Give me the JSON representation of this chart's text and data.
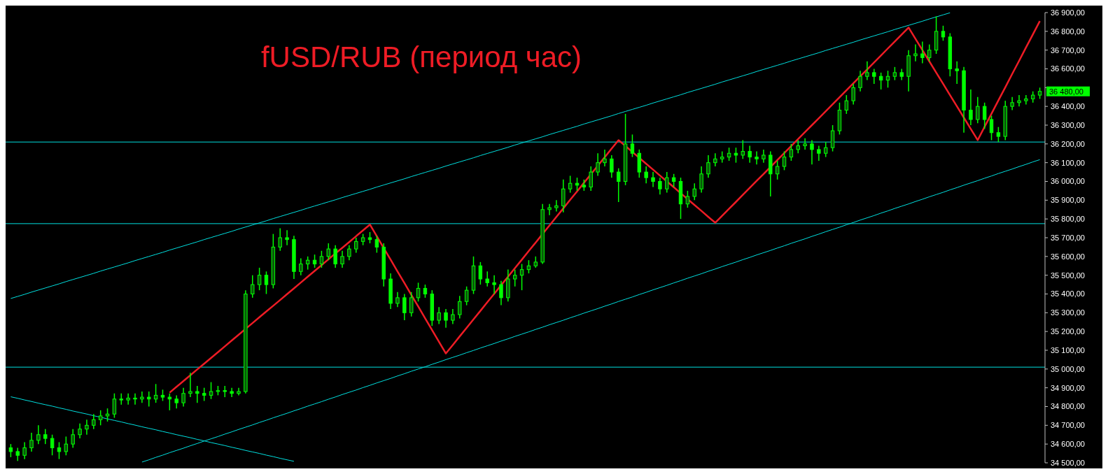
{
  "chart_data": {
    "type": "candlestick",
    "title": "fUSD/RUB (период час)",
    "color": "#00ff00",
    "categories": [
      null,
      null,
      null,
      null,
      null,
      null,
      null,
      null,
      null,
      null,
      null,
      null,
      null,
      null,
      null,
      null,
      null,
      null,
      null,
      null,
      null,
      null,
      null,
      null,
      null,
      null,
      null,
      null,
      null,
      null,
      null,
      null,
      null,
      null,
      null,
      null,
      null,
      null,
      null,
      null,
      null,
      null,
      null,
      null,
      null,
      null,
      null,
      null,
      null,
      null,
      null,
      null,
      null,
      null,
      null,
      null,
      null,
      null,
      null,
      null,
      null,
      null,
      null,
      null,
      null,
      null,
      null,
      null,
      null,
      null,
      null,
      null,
      null,
      null,
      null,
      null,
      null,
      null,
      null,
      null,
      null,
      null,
      null,
      null,
      null,
      null,
      null,
      null,
      null,
      null,
      null,
      null,
      null,
      null,
      null,
      null,
      null,
      null,
      null,
      null,
      null,
      null,
      null,
      null,
      null,
      null,
      null,
      null,
      null,
      null,
      null,
      null,
      null,
      null,
      null,
      null,
      null,
      null,
      null,
      null,
      null,
      null,
      null,
      null,
      null,
      null,
      null,
      null,
      null,
      null,
      null,
      null,
      null,
      null,
      null,
      null,
      null,
      null,
      null,
      null,
      null,
      null,
      null,
      null,
      null,
      null,
      null,
      null,
      null,
      null
    ],
    "ohlc": [
      [
        34580,
        34600,
        34530,
        34560
      ],
      [
        34560,
        34580,
        34510,
        34540
      ],
      [
        34540,
        34610,
        34520,
        34580
      ],
      [
        34580,
        34660,
        34560,
        34620
      ],
      [
        34620,
        34700,
        34600,
        34650
      ],
      [
        34650,
        34680,
        34600,
        34630
      ],
      [
        34630,
        34650,
        34540,
        34580
      ],
      [
        34580,
        34610,
        34520,
        34560
      ],
      [
        34560,
        34640,
        34540,
        34600
      ],
      [
        34600,
        34680,
        34580,
        34650
      ],
      [
        34650,
        34710,
        34630,
        34680
      ],
      [
        34680,
        34730,
        34650,
        34700
      ],
      [
        34700,
        34760,
        34680,
        34730
      ],
      [
        34730,
        34780,
        34700,
        34750
      ],
      [
        34750,
        34790,
        34720,
        34760
      ],
      [
        34760,
        34870,
        34740,
        34840
      ],
      [
        34840,
        34870,
        34810,
        34835
      ],
      [
        34835,
        34870,
        34810,
        34845
      ],
      [
        34845,
        34870,
        34810,
        34840
      ],
      [
        34840,
        34880,
        34820,
        34850
      ],
      [
        34850,
        34880,
        34800,
        34840
      ],
      [
        34840,
        34920,
        34820,
        34860
      ],
      [
        34860,
        34890,
        34830,
        34850
      ],
      [
        34850,
        34870,
        34780,
        34840
      ],
      [
        34840,
        34860,
        34790,
        34820
      ],
      [
        34820,
        34900,
        34800,
        34870
      ],
      [
        34870,
        34980,
        34850,
        34880
      ],
      [
        34880,
        34910,
        34820,
        34870
      ],
      [
        34870,
        34900,
        34830,
        34860
      ],
      [
        34860,
        34930,
        34840,
        34880
      ],
      [
        34880,
        34910,
        34860,
        34885
      ],
      [
        34885,
        34910,
        34850,
        34880
      ],
      [
        34880,
        34900,
        34850,
        34870
      ],
      [
        34870,
        34900,
        34860,
        34880
      ],
      [
        34880,
        35420,
        34870,
        35400
      ],
      [
        35400,
        35500,
        35380,
        35450
      ],
      [
        35450,
        35540,
        35420,
        35500
      ],
      [
        35500,
        35520,
        35400,
        35450
      ],
      [
        35450,
        35720,
        35430,
        35650
      ],
      [
        35650,
        35750,
        35630,
        35700
      ],
      [
        35700,
        35740,
        35660,
        35690
      ],
      [
        35690,
        35710,
        35480,
        35520
      ],
      [
        35520,
        35590,
        35500,
        35560
      ],
      [
        35560,
        35600,
        35530,
        35580
      ],
      [
        35580,
        35610,
        35540,
        35560
      ],
      [
        35560,
        35630,
        35540,
        35600
      ],
      [
        35600,
        35670,
        35580,
        35640
      ],
      [
        35640,
        35660,
        35540,
        35560
      ],
      [
        35560,
        35630,
        35540,
        35600
      ],
      [
        35600,
        35660,
        35580,
        35640
      ],
      [
        35640,
        35700,
        35620,
        35680
      ],
      [
        35680,
        35720,
        35660,
        35700
      ],
      [
        35700,
        35730,
        35670,
        35690
      ],
      [
        35690,
        35710,
        35620,
        35650
      ],
      [
        35650,
        35670,
        35440,
        35480
      ],
      [
        35480,
        35510,
        35320,
        35350
      ],
      [
        35350,
        35410,
        35330,
        35380
      ],
      [
        35380,
        35400,
        35260,
        35300
      ],
      [
        35300,
        35410,
        35280,
        35380
      ],
      [
        35380,
        35460,
        35360,
        35430
      ],
      [
        35430,
        35450,
        35380,
        35400
      ],
      [
        35400,
        35420,
        35230,
        35260
      ],
      [
        35260,
        35330,
        35240,
        35300
      ],
      [
        35300,
        35320,
        35220,
        35260
      ],
      [
        35260,
        35320,
        35240,
        35290
      ],
      [
        35290,
        35390,
        35270,
        35360
      ],
      [
        35360,
        35440,
        35340,
        35420
      ],
      [
        35420,
        35600,
        35400,
        35550
      ],
      [
        35550,
        35570,
        35450,
        35480
      ],
      [
        35480,
        35520,
        35440,
        35460
      ],
      [
        35460,
        35500,
        35400,
        35450
      ],
      [
        35450,
        35470,
        35340,
        35380
      ],
      [
        35380,
        35530,
        35360,
        35480
      ],
      [
        35480,
        35530,
        35440,
        35500
      ],
      [
        35500,
        35560,
        35420,
        35530
      ],
      [
        35530,
        35580,
        35510,
        35550
      ],
      [
        35550,
        35600,
        35540,
        35570
      ],
      [
        35570,
        35880,
        35560,
        35850
      ],
      [
        35850,
        35880,
        35820,
        35860
      ],
      [
        35860,
        35900,
        35840,
        35870
      ],
      [
        35870,
        36010,
        35835,
        35960
      ],
      [
        35960,
        36030,
        35940,
        35990
      ],
      [
        35990,
        36020,
        35950,
        35980
      ],
      [
        35980,
        36010,
        35950,
        35970
      ],
      [
        35970,
        36080,
        35950,
        36050
      ],
      [
        36050,
        36150,
        36030,
        36100
      ],
      [
        36100,
        36170,
        36080,
        36120
      ],
      [
        36120,
        36140,
        36020,
        36050
      ],
      [
        36050,
        36070,
        35890,
        36000
      ],
      [
        36000,
        36360,
        35980,
        36200
      ],
      [
        36200,
        36250,
        36130,
        36150
      ],
      [
        36150,
        36170,
        36020,
        36050
      ],
      [
        36050,
        36080,
        35990,
        36020
      ],
      [
        36020,
        36050,
        35970,
        36000
      ],
      [
        36000,
        36020,
        35930,
        35960
      ],
      [
        35960,
        36050,
        35940,
        36020
      ],
      [
        36020,
        36040,
        35970,
        36000
      ],
      [
        36000,
        36020,
        35800,
        35880
      ],
      [
        35880,
        35950,
        35860,
        35920
      ],
      [
        35920,
        35990,
        35900,
        35960
      ],
      [
        35960,
        36080,
        35940,
        36040
      ],
      [
        36040,
        36140,
        36020,
        36100
      ],
      [
        36100,
        36150,
        36080,
        36120
      ],
      [
        36120,
        36160,
        36100,
        36130
      ],
      [
        36130,
        36180,
        36110,
        36150
      ],
      [
        36150,
        36180,
        36100,
        36140
      ],
      [
        36140,
        36220,
        36120,
        36160
      ],
      [
        36160,
        36190,
        36100,
        36130
      ],
      [
        36130,
        36160,
        36090,
        36120
      ],
      [
        36120,
        36170,
        36100,
        36140
      ],
      [
        36140,
        36160,
        35920,
        36040
      ],
      [
        36040,
        36110,
        36010,
        36080
      ],
      [
        36080,
        36160,
        36060,
        36130
      ],
      [
        36130,
        36200,
        36110,
        36170
      ],
      [
        36170,
        36220,
        36150,
        36190
      ],
      [
        36190,
        36230,
        36170,
        36200
      ],
      [
        36200,
        36220,
        36090,
        36170
      ],
      [
        36170,
        36190,
        36110,
        36150
      ],
      [
        36150,
        36210,
        36130,
        36180
      ],
      [
        36180,
        36300,
        36160,
        36270
      ],
      [
        36270,
        36420,
        36250,
        36380
      ],
      [
        36380,
        36460,
        36360,
        36430
      ],
      [
        36430,
        36520,
        36410,
        36500
      ],
      [
        36500,
        36590,
        36480,
        36560
      ],
      [
        36560,
        36640,
        36540,
        36580
      ],
      [
        36580,
        36600,
        36520,
        36560
      ],
      [
        36560,
        36580,
        36490,
        36540
      ],
      [
        36540,
        36590,
        36500,
        36560
      ],
      [
        36560,
        36610,
        36540,
        36580
      ],
      [
        36580,
        36600,
        36540,
        36560
      ],
      [
        36560,
        36700,
        36480,
        36670
      ],
      [
        36670,
        36730,
        36640,
        36680
      ],
      [
        36680,
        36745,
        36630,
        36660
      ],
      [
        36660,
        36730,
        36640,
        36700
      ],
      [
        36700,
        36880,
        36680,
        36800
      ],
      [
        36800,
        36830,
        36750,
        36770
      ],
      [
        36770,
        36790,
        36560,
        36600
      ],
      [
        36600,
        36640,
        36520,
        36590
      ],
      [
        36590,
        36610,
        36260,
        36380
      ],
      [
        36380,
        36490,
        36300,
        36330
      ],
      [
        36330,
        36450,
        36310,
        36400
      ],
      [
        36400,
        36420,
        36280,
        36330
      ],
      [
        36330,
        36350,
        36220,
        36260
      ],
      [
        36260,
        36290,
        36210,
        36240
      ],
      [
        36240,
        36430,
        36220,
        36400
      ],
      [
        36400,
        36450,
        36380,
        36420
      ],
      [
        36420,
        36460,
        36400,
        36430
      ],
      [
        36430,
        36460,
        36410,
        36440
      ],
      [
        36440,
        36480,
        36420,
        36460
      ],
      [
        36460,
        36500,
        36440,
        36480
      ]
    ],
    "series": [
      {
        "type": "line",
        "color": "#00e0e0",
        "values": [
          35376,
          35387,
          35398,
          35410,
          35421,
          35432,
          35443,
          35454,
          35466,
          35477,
          35488,
          35499,
          35510,
          35522,
          35533,
          35544,
          35555,
          35566,
          35578,
          35589,
          35600,
          35611,
          35622,
          35634,
          35645,
          35656,
          35667,
          35678,
          35690,
          35701,
          35712,
          35723,
          35734,
          35746,
          35757,
          35768,
          35779,
          35790,
          35802,
          35813,
          35824,
          35835,
          35846,
          35858,
          35869,
          35880,
          35891,
          35902,
          35914,
          35925,
          35936,
          35947,
          35958,
          35970,
          35981,
          35992,
          36003,
          36014,
          36026,
          36037,
          36048,
          36059,
          36070,
          36082,
          36093,
          36104,
          36115,
          36126,
          36138,
          36149,
          36160,
          36171,
          36182,
          36194,
          36205,
          36216,
          36227,
          36238,
          36250,
          36261,
          36272,
          36283,
          36294,
          36306,
          36317,
          36328,
          36339,
          36350,
          36362,
          36373,
          36384,
          36395,
          36406,
          36418,
          36429,
          36440,
          36451,
          36462,
          36474,
          36485,
          36496,
          36507,
          36518,
          36530,
          36541,
          36552,
          36563,
          36574,
          36586,
          36597,
          36608,
          36619,
          36630,
          36642,
          36653,
          36664,
          36675,
          36686,
          36698,
          36709,
          36720,
          36731,
          36742,
          36754,
          36765,
          36776,
          36787,
          36798,
          36810,
          36821,
          36832,
          36843,
          36854,
          36866,
          36877,
          36888,
          36899,
          null,
          null,
          null,
          null,
          null,
          null,
          null,
          null,
          null,
          null,
          null,
          null,
          null
        ]
      },
      {
        "type": "line",
        "color": "#00e0e0",
        "values": [
          null,
          null,
          null,
          null,
          null,
          null,
          null,
          null,
          null,
          null,
          null,
          null,
          null,
          null,
          null,
          null,
          null,
          null,
          null,
          34504,
          34516,
          34529,
          34541,
          34554,
          34566,
          34578,
          34591,
          34603,
          34616,
          34628,
          34640,
          34653,
          34665,
          34678,
          34690,
          34702,
          34715,
          34727,
          34740,
          34752,
          34764,
          34777,
          34789,
          34802,
          34814,
          34826,
          34839,
          34851,
          34864,
          34876,
          34888,
          34901,
          34913,
          34926,
          34938,
          34950,
          34963,
          34975,
          34988,
          35000,
          35012,
          35025,
          35037,
          35050,
          35062,
          35074,
          35087,
          35099,
          35112,
          35124,
          35136,
          35149,
          35161,
          35174,
          35186,
          35198,
          35211,
          35223,
          35236,
          35248,
          35260,
          35273,
          35285,
          35298,
          35310,
          35322,
          35335,
          35347,
          35360,
          35372,
          35384,
          35397,
          35409,
          35422,
          35434,
          35446,
          35459,
          35471,
          35484,
          35496,
          35508,
          35521,
          35533,
          35546,
          35558,
          35570,
          35583,
          35595,
          35608,
          35620,
          35632,
          35645,
          35657,
          35670,
          35682,
          35694,
          35707,
          35719,
          35732,
          35744,
          35756,
          35769,
          35781,
          35794,
          35806,
          35818,
          35831,
          35843,
          35856,
          35868,
          35880,
          35893,
          35905,
          35918,
          35930,
          35942,
          35955,
          35967,
          35980,
          35992,
          36004,
          36017,
          36029,
          36042,
          36054,
          36066,
          36079,
          36091,
          36104,
          36116
        ]
      },
      {
        "type": "line",
        "color": "#00e0e0",
        "values": [
          34852,
          34844,
          34835,
          34827,
          34818,
          34810,
          34802,
          34793,
          34785,
          34776,
          34768,
          34760,
          34751,
          34743,
          34734,
          34726,
          34718,
          34709,
          34701,
          34692,
          34684,
          34676,
          34667,
          34659,
          34650,
          34642,
          34634,
          34625,
          34617,
          34608,
          34600,
          34592,
          34583,
          34575,
          34566,
          34558,
          34550,
          34541,
          34533,
          34524,
          34516,
          34508,
          null,
          null,
          null,
          null,
          null,
          null,
          null,
          null,
          null,
          null,
          null,
          null,
          null,
          null,
          null,
          null,
          null,
          null,
          null,
          null,
          null,
          null,
          null,
          null,
          null,
          null,
          null,
          null,
          null,
          null,
          null,
          null,
          null,
          null,
          null,
          null,
          null,
          null,
          null,
          null,
          null,
          null,
          null,
          null,
          null,
          null,
          null,
          null,
          null,
          null,
          null,
          null,
          null,
          null,
          null,
          null,
          null,
          null,
          null,
          null,
          null,
          null,
          null,
          null,
          null,
          null,
          null,
          null,
          null,
          null,
          null,
          null,
          null,
          null,
          null,
          null,
          null,
          null,
          null,
          null,
          null,
          null,
          null,
          null,
          null,
          null,
          null,
          null,
          null,
          null,
          null,
          null,
          null,
          null,
          null,
          null,
          null,
          null,
          null,
          null,
          null,
          null,
          null,
          null,
          null,
          null,
          null,
          null
        ]
      },
      {
        "type": "line",
        "color": "#ee1c25",
        "values": [
          null,
          null,
          null,
          null,
          null,
          null,
          null,
          null,
          null,
          null,
          null,
          null,
          null,
          null,
          null,
          null,
          null,
          null,
          null,
          null,
          null,
          null,
          null,
          34874,
          34905,
          34936,
          34967,
          34998,
          35028,
          35059,
          35090,
          35121,
          35152,
          35183,
          35214,
          35245,
          35276,
          35307,
          35337,
          35368,
          35399,
          35430,
          35461,
          35492,
          35523,
          35554,
          35585,
          35616,
          35646,
          35677,
          35708,
          35739,
          35770,
          35708,
          35645,
          35583,
          35520,
          35458,
          35395,
          35333,
          35270,
          35208,
          35145,
          35083,
          35128,
          35174,
          35219,
          35265,
          35310,
          35356,
          35401,
          35447,
          35492,
          35538,
          35583,
          35629,
          35674,
          35720,
          35765,
          35811,
          35856,
          35902,
          35947,
          35993,
          36038,
          36084,
          36129,
          36175,
          36220,
          36189,
          36157,
          36126,
          36094,
          36063,
          36031,
          36000,
          35969,
          35937,
          35906,
          35874,
          35843,
          35811,
          35780,
          35817,
          35854,
          35891,
          35929,
          35966,
          36003,
          36040,
          36077,
          36114,
          36151,
          36189,
          36226,
          36263,
          36300,
          36337,
          36374,
          36411,
          36449,
          36486,
          36523,
          36560,
          36597,
          36634,
          36671,
          36709,
          36746,
          36783,
          36820,
          36760,
          36700,
          36640,
          36580,
          36520,
          36460,
          36400,
          36340,
          36280,
          36220,
          36291,
          36361,
          36432,
          36502,
          36573,
          36643,
          36714,
          36784,
          36855
        ]
      }
    ],
    "ref_lines": [
      {
        "axis": "y",
        "value": 36210,
        "color": "#00e0e0"
      },
      {
        "axis": "y",
        "value": 35775,
        "color": "#00e0e0"
      },
      {
        "axis": "y",
        "value": 35010,
        "color": "#00e0e0"
      }
    ],
    "annotations": [
      "36 480,00"
    ],
    "ylim": [
      34500,
      36900
    ],
    "yticks": [
      {
        "value": 34500,
        "label": "34 500,00"
      },
      {
        "value": 34600,
        "label": "34 600,00"
      },
      {
        "value": 34700,
        "label": "34 700,00"
      },
      {
        "value": 34800,
        "label": "34 800,00"
      },
      {
        "value": 34900,
        "label": "34 900,00"
      },
      {
        "value": 35000,
        "label": "35 000,00"
      },
      {
        "value": 35100,
        "label": "35 100,00"
      },
      {
        "value": 35200,
        "label": "35 200,00"
      },
      {
        "value": 35300,
        "label": "35 300,00"
      },
      {
        "value": 35400,
        "label": "35 400,00"
      },
      {
        "value": 35500,
        "label": "35 500,00"
      },
      {
        "value": 35600,
        "label": "35 600,00"
      },
      {
        "value": 35700,
        "label": "35 700,00"
      },
      {
        "value": 35800,
        "label": "35 800,00"
      },
      {
        "value": 35900,
        "label": "35 900,00"
      },
      {
        "value": 36000,
        "label": "36 000,00"
      },
      {
        "value": 36100,
        "label": "36 100,00"
      },
      {
        "value": 36200,
        "label": "36 200,00"
      },
      {
        "value": 36300,
        "label": "36 300,00"
      },
      {
        "value": 36400,
        "label": "36 400,00"
      },
      {
        "value": 36500,
        "label": null
      },
      {
        "value": 36600,
        "label": "36 600,00"
      },
      {
        "value": 36700,
        "label": "36 700,00"
      },
      {
        "value": 36800,
        "label": "36 800,00"
      },
      {
        "value": 36900,
        "label": "36 900,00"
      }
    ],
    "tick_labels": "y"
  }
}
